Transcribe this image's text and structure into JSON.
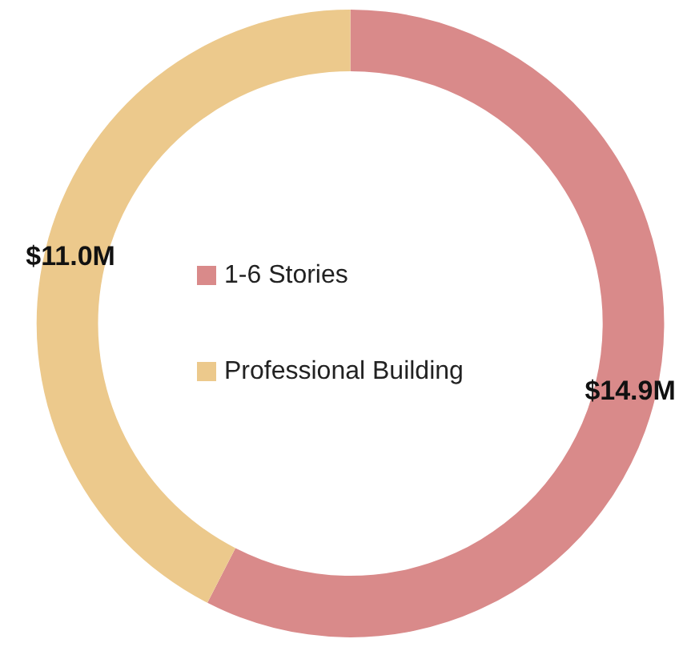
{
  "chart_data": {
    "type": "donut",
    "categories": [
      "1-6 Stories",
      "Professional Building"
    ],
    "values": [
      14.9,
      11.0
    ],
    "value_labels": [
      "$14.9M",
      "$11.0M"
    ],
    "colors": [
      "#d98a8a",
      "#ecc98c"
    ],
    "legend": "center"
  }
}
